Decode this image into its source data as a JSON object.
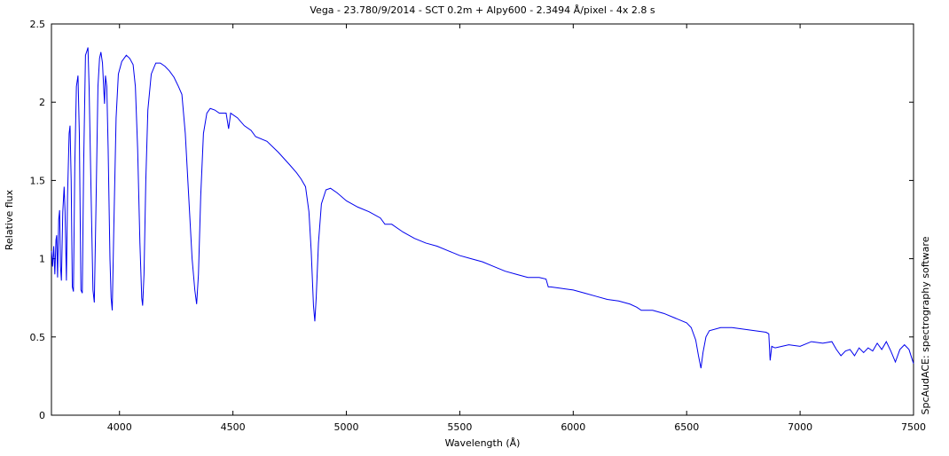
{
  "chart_data": {
    "type": "line",
    "title": "Vega - 23.780/9/2014 - SCT 0.2m + Alpy600 - 2.3494 Å/pixel - 4x 2.8 s",
    "x_label": "Wavelength (Å)",
    "y_label": "Relative flux",
    "side_label": "SpcAudACE: spectrography software",
    "color": "#0000ee",
    "xlim": [
      3700,
      7500
    ],
    "ylim": [
      0,
      2.5
    ],
    "xticks": [
      4000,
      4500,
      5000,
      5500,
      6000,
      6500,
      7000,
      7500
    ],
    "yticks": [
      0,
      0.5,
      1,
      1.5,
      2,
      2.5
    ],
    "grid": false,
    "x": [
      3700,
      3705,
      3710,
      3715,
      3720,
      3723,
      3727,
      3732,
      3736,
      3740,
      3744,
      3750,
      3756,
      3760,
      3766,
      3771,
      3778,
      3782,
      3787,
      3792,
      3797,
      3803,
      3810,
      3817,
      3823,
      3830,
      3836,
      3842,
      3850,
      3857,
      3861,
      3866,
      3875,
      3883,
      3889,
      3896,
      3905,
      3912,
      3918,
      3925,
      3930,
      3934,
      3938,
      3944,
      3950,
      3958,
      3963,
      3968,
      3975,
      3985,
      3995,
      4010,
      4030,
      4045,
      4060,
      4070,
      4080,
      4090,
      4098,
      4102,
      4108,
      4116,
      4125,
      4140,
      4160,
      4180,
      4200,
      4220,
      4240,
      4260,
      4275,
      4290,
      4305,
      4320,
      4332,
      4340,
      4348,
      4358,
      4370,
      4385,
      4400,
      4420,
      4440,
      4470,
      4481,
      4490,
      4520,
      4550,
      4580,
      4600,
      4650,
      4700,
      4750,
      4780,
      4800,
      4820,
      4835,
      4845,
      4855,
      4861,
      4867,
      4877,
      4890,
      4910,
      4930,
      4960,
      5000,
      5050,
      5100,
      5150,
      5170,
      5200,
      5250,
      5300,
      5350,
      5400,
      5450,
      5500,
      5550,
      5600,
      5650,
      5700,
      5750,
      5800,
      5850,
      5880,
      5890,
      5900,
      5950,
      6000,
      6050,
      6100,
      6150,
      6200,
      6250,
      6280,
      6300,
      6350,
      6400,
      6450,
      6500,
      6520,
      6540,
      6552,
      6563,
      6572,
      6585,
      6600,
      6650,
      6700,
      6750,
      6800,
      6850,
      6862,
      6868,
      6875,
      6890,
      6920,
      6950,
      7000,
      7050,
      7100,
      7140,
      7160,
      7180,
      7200,
      7220,
      7240,
      7260,
      7280,
      7300,
      7320,
      7340,
      7360,
      7380,
      7400,
      7420,
      7440,
      7460,
      7480,
      7500
    ],
    "values": [
      1.05,
      0.95,
      1.08,
      0.9,
      1.12,
      1.15,
      0.88,
      1.25,
      1.31,
      0.95,
      0.86,
      1.3,
      1.46,
      1.3,
      0.86,
      1.4,
      1.8,
      1.85,
      1.5,
      0.82,
      0.79,
      1.6,
      2.1,
      2.17,
      1.8,
      0.8,
      0.78,
      1.6,
      2.3,
      2.33,
      2.35,
      2.1,
      1.4,
      0.8,
      0.72,
      1.3,
      2.1,
      2.28,
      2.32,
      2.25,
      2.1,
      1.99,
      2.17,
      2.1,
      1.7,
      1.0,
      0.75,
      0.67,
      1.2,
      1.9,
      2.18,
      2.26,
      2.3,
      2.28,
      2.24,
      2.1,
      1.7,
      1.1,
      0.75,
      0.7,
      0.9,
      1.5,
      1.95,
      2.18,
      2.25,
      2.25,
      2.23,
      2.2,
      2.16,
      2.1,
      2.05,
      1.8,
      1.4,
      1.0,
      0.8,
      0.71,
      0.9,
      1.4,
      1.8,
      1.93,
      1.96,
      1.95,
      1.93,
      1.93,
      1.83,
      1.93,
      1.9,
      1.85,
      1.82,
      1.78,
      1.75,
      1.68,
      1.6,
      1.55,
      1.51,
      1.46,
      1.3,
      1.05,
      0.7,
      0.6,
      0.75,
      1.1,
      1.35,
      1.44,
      1.45,
      1.42,
      1.37,
      1.33,
      1.3,
      1.26,
      1.22,
      1.22,
      1.17,
      1.13,
      1.1,
      1.08,
      1.05,
      1.02,
      1.0,
      0.98,
      0.95,
      0.92,
      0.9,
      0.88,
      0.88,
      0.87,
      0.82,
      0.82,
      0.81,
      0.8,
      0.78,
      0.76,
      0.74,
      0.73,
      0.71,
      0.69,
      0.67,
      0.67,
      0.65,
      0.62,
      0.59,
      0.56,
      0.48,
      0.38,
      0.3,
      0.4,
      0.5,
      0.54,
      0.56,
      0.56,
      0.55,
      0.54,
      0.53,
      0.52,
      0.35,
      0.44,
      0.43,
      0.44,
      0.45,
      0.44,
      0.47,
      0.46,
      0.47,
      0.42,
      0.38,
      0.41,
      0.42,
      0.38,
      0.43,
      0.4,
      0.43,
      0.41,
      0.46,
      0.42,
      0.47,
      0.41,
      0.34,
      0.42,
      0.45,
      0.42,
      0.33
    ]
  }
}
